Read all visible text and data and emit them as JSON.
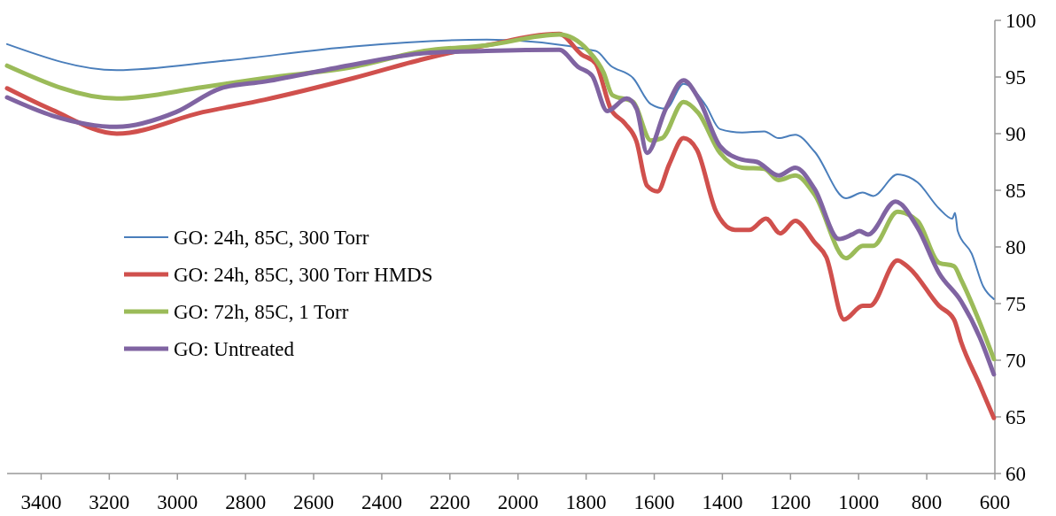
{
  "chart_data": {
    "type": "line",
    "xlim": [
      3500,
      600
    ],
    "xticks": [
      3400,
      3200,
      3000,
      2800,
      2600,
      2400,
      2200,
      2000,
      1800,
      1600,
      1400,
      1200,
      1000,
      800,
      600
    ],
    "ylim": [
      60,
      100
    ],
    "yticks": [
      60,
      65,
      70,
      75,
      80,
      85,
      90,
      95,
      100
    ],
    "grid": false,
    "legend": "left",
    "marker": "none",
    "line_style": "solid",
    "series": [
      {
        "name": "GO: 24h, 85C, 300 Torr",
        "color": "#4a7ebb",
        "x": [
          3500,
          3178,
          2873,
          2483,
          2092,
          1772,
          1728,
          1662,
          1610,
          1566,
          1514,
          1449,
          1407,
          1342,
          1277,
          1235,
          1186,
          1129,
          1037,
          988,
          957,
          886,
          827,
          764,
          725,
          717,
          709,
          668,
          634,
          603
        ],
        "values": [
          97.9,
          95.6,
          96.4,
          97.7,
          98.3,
          97.3,
          96.0,
          94.9,
          92.6,
          92.2,
          94.4,
          92.5,
          90.4,
          90.1,
          90.2,
          89.6,
          89.9,
          88.4,
          84.3,
          84.8,
          84.5,
          86.4,
          85.7,
          83.4,
          82.5,
          83.0,
          81.4,
          79.4,
          76.5,
          75.4
        ]
      },
      {
        "name": "GO: 24h, 85C, 300 Torr HMDS",
        "color": "#d0504d",
        "x": [
          3500,
          3368,
          3178,
          2925,
          2743,
          2483,
          2275,
          2092,
          1879,
          1814,
          1772,
          1728,
          1686,
          1652,
          1621,
          1590,
          1556,
          1514,
          1475,
          1418,
          1363,
          1321,
          1272,
          1230,
          1186,
          1129,
          1095,
          1043,
          988,
          967,
          886,
          850,
          764,
          720,
          699,
          644,
          603
        ],
        "values": [
          94.0,
          92.1,
          90.0,
          91.9,
          93.0,
          94.9,
          96.6,
          97.8,
          98.8,
          97.0,
          96.2,
          92.2,
          90.9,
          89.3,
          85.4,
          84.9,
          87.3,
          89.6,
          88.6,
          83.1,
          81.5,
          81.5,
          82.5,
          81.2,
          82.3,
          80.4,
          79.1,
          73.6,
          74.8,
          74.8,
          78.8,
          78.1,
          74.8,
          73.6,
          71.6,
          67.8,
          64.9
        ]
      },
      {
        "name": "GO: 72h, 85C, 1 Torr",
        "color": "#9bbb59",
        "x": [
          3500,
          3178,
          2925,
          2743,
          2483,
          2275,
          2092,
          1879,
          1793,
          1749,
          1723,
          1662,
          1610,
          1577,
          1514,
          1470,
          1407,
          1342,
          1277,
          1235,
          1186,
          1129,
          1037,
          988,
          957,
          886,
          827,
          764,
          720,
          699,
          644,
          603
        ],
        "values": [
          96.0,
          93.1,
          94.1,
          94.9,
          95.9,
          97.3,
          97.8,
          98.75,
          97.3,
          95.4,
          93.4,
          92.8,
          89.4,
          89.6,
          92.8,
          91.8,
          88.3,
          87.0,
          86.9,
          85.9,
          86.3,
          84.6,
          79.0,
          80.1,
          80.1,
          83.1,
          82.3,
          78.6,
          78.3,
          77.1,
          73.3,
          70.1
        ]
      },
      {
        "name": "GO: Untreated",
        "color": "#8064a2",
        "x": [
          3500,
          3368,
          3178,
          3004,
          2873,
          2743,
          2483,
          2275,
          2092,
          1879,
          1824,
          1782,
          1738,
          1681,
          1652,
          1621,
          1566,
          1514,
          1470,
          1407,
          1342,
          1298,
          1235,
          1186,
          1129,
          1058,
          1019,
          998,
          972,
          892,
          827,
          764,
          699,
          644,
          603
        ],
        "values": [
          93.2,
          91.6,
          90.6,
          91.9,
          94.0,
          94.6,
          96.1,
          97.1,
          97.3,
          97.4,
          95.9,
          95.1,
          92.0,
          93.1,
          92.2,
          88.3,
          92.2,
          94.7,
          93.1,
          88.9,
          87.7,
          87.5,
          86.3,
          87.0,
          85.1,
          80.7,
          81.1,
          81.4,
          81.1,
          84.0,
          81.7,
          77.7,
          75.2,
          72.0,
          68.75
        ]
      }
    ]
  }
}
